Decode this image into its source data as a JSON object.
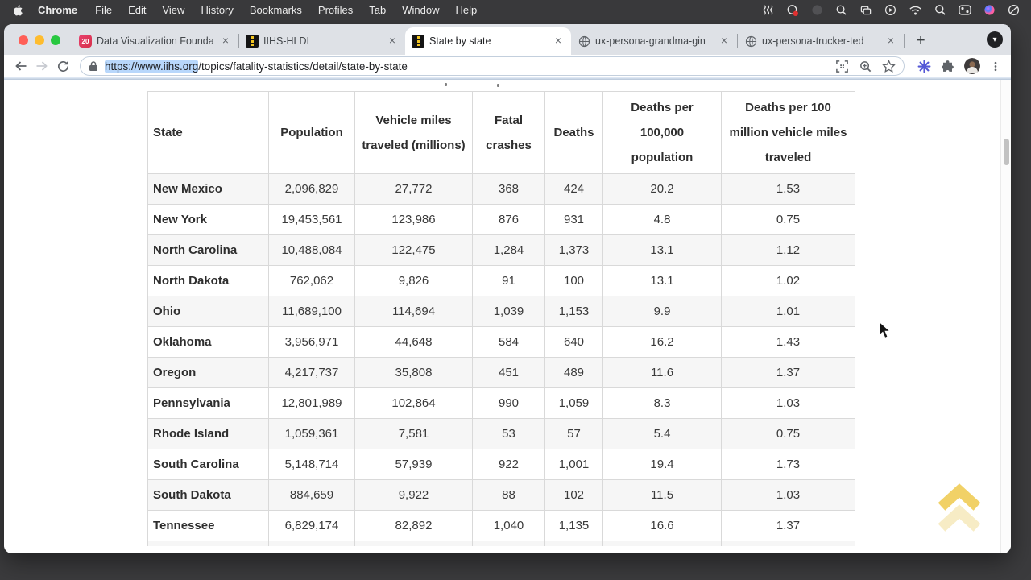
{
  "colors": {
    "accent_yellow": "#eec94c",
    "selection_blue": "#b8d7fb",
    "tabstrip_bg": "#dee1e6",
    "menubar_bg": "#39393b"
  },
  "menu_bar": {
    "app_name": "Chrome",
    "items": [
      "File",
      "Edit",
      "View",
      "History",
      "Bookmarks",
      "Profiles",
      "Tab",
      "Window",
      "Help"
    ],
    "status_icons": [
      "squiggle",
      "screen-record",
      "dimmed-app",
      "magnifier-app",
      "displays",
      "play",
      "wifi",
      "spotlight",
      "control-center",
      "siri",
      "do-not-disturb"
    ]
  },
  "browser": {
    "tabs": [
      {
        "title": "Data Visualization Founda",
        "favicon": "dataviz",
        "favicon_text": "20",
        "close_glyph": "×",
        "active": false
      },
      {
        "title": "IIHS-HLDI",
        "favicon": "iihs",
        "close_glyph": "×",
        "active": false
      },
      {
        "title": "State by state",
        "favicon": "iihs",
        "close_glyph": "×",
        "active": true
      },
      {
        "title": "ux-persona-grandma-gin",
        "favicon": "globe",
        "close_glyph": "×",
        "active": false
      },
      {
        "title": "ux-persona-trucker-ted",
        "favicon": "globe",
        "close_glyph": "×",
        "active": false
      }
    ],
    "new_tab_glyph": "+",
    "tab_menu_glyph": "▾",
    "address": {
      "selected": "https://www.iihs.org",
      "rest": "/topics/fatality-statistics/detail/state-by-state"
    }
  },
  "page": {
    "table": {
      "headers": [
        "State",
        "Population",
        "Vehicle miles traveled (millions)",
        "Fatal crashes",
        "Deaths",
        "Deaths per 100,000 population",
        "Deaths per 100 million vehicle miles traveled"
      ],
      "rows": [
        [
          "New Mexico",
          "2,096,829",
          "27,772",
          "368",
          "424",
          "20.2",
          "1.53"
        ],
        [
          "New York",
          "19,453,561",
          "123,986",
          "876",
          "931",
          "4.8",
          "0.75"
        ],
        [
          "North Carolina",
          "10,488,084",
          "122,475",
          "1,284",
          "1,373",
          "13.1",
          "1.12"
        ],
        [
          "North Dakota",
          "762,062",
          "9,826",
          "91",
          "100",
          "13.1",
          "1.02"
        ],
        [
          "Ohio",
          "11,689,100",
          "114,694",
          "1,039",
          "1,153",
          "9.9",
          "1.01"
        ],
        [
          "Oklahoma",
          "3,956,971",
          "44,648",
          "584",
          "640",
          "16.2",
          "1.43"
        ],
        [
          "Oregon",
          "4,217,737",
          "35,808",
          "451",
          "489",
          "11.6",
          "1.37"
        ],
        [
          "Pennsylvania",
          "12,801,989",
          "102,864",
          "990",
          "1,059",
          "8.3",
          "1.03"
        ],
        [
          "Rhode Island",
          "1,059,361",
          "7,581",
          "53",
          "57",
          "5.4",
          "0.75"
        ],
        [
          "South Carolina",
          "5,148,714",
          "57,939",
          "922",
          "1,001",
          "19.4",
          "1.73"
        ],
        [
          "South Dakota",
          "884,659",
          "9,922",
          "88",
          "102",
          "11.5",
          "1.03"
        ],
        [
          "Tennessee",
          "6,829,174",
          "82,892",
          "1,040",
          "1,135",
          "16.6",
          "1.37"
        ]
      ]
    }
  }
}
